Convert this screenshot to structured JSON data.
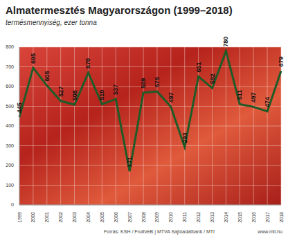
{
  "chart_data": {
    "type": "line",
    "title": "Almatermesztés Magyarországon (1999–2018)",
    "subtitle": "termésmennyiség, ezer tonna",
    "source": "Forrás: KSH / FruitVeB | MTVA Sajtóadatbank / MTI",
    "website": "www.mti.hu",
    "categories": [
      "1999",
      "2000",
      "2001",
      "2002",
      "2003",
      "2004",
      "2005",
      "2006",
      "2007",
      "2008",
      "2009",
      "2010",
      "2011",
      "2012",
      "2013",
      "2014",
      "2015",
      "2016",
      "2017",
      "2018"
    ],
    "values": [
      445,
      695,
      605,
      527,
      508,
      670,
      510,
      537,
      171,
      569,
      575,
      497,
      293,
      651,
      592,
      780,
      511,
      497,
      474,
      679
    ],
    "color": "#1f5a27",
    "ylim": [
      0,
      800
    ],
    "yticks": [
      0,
      100,
      200,
      300,
      400,
      500,
      600,
      700,
      800
    ],
    "grid": true,
    "data_labels": true
  }
}
